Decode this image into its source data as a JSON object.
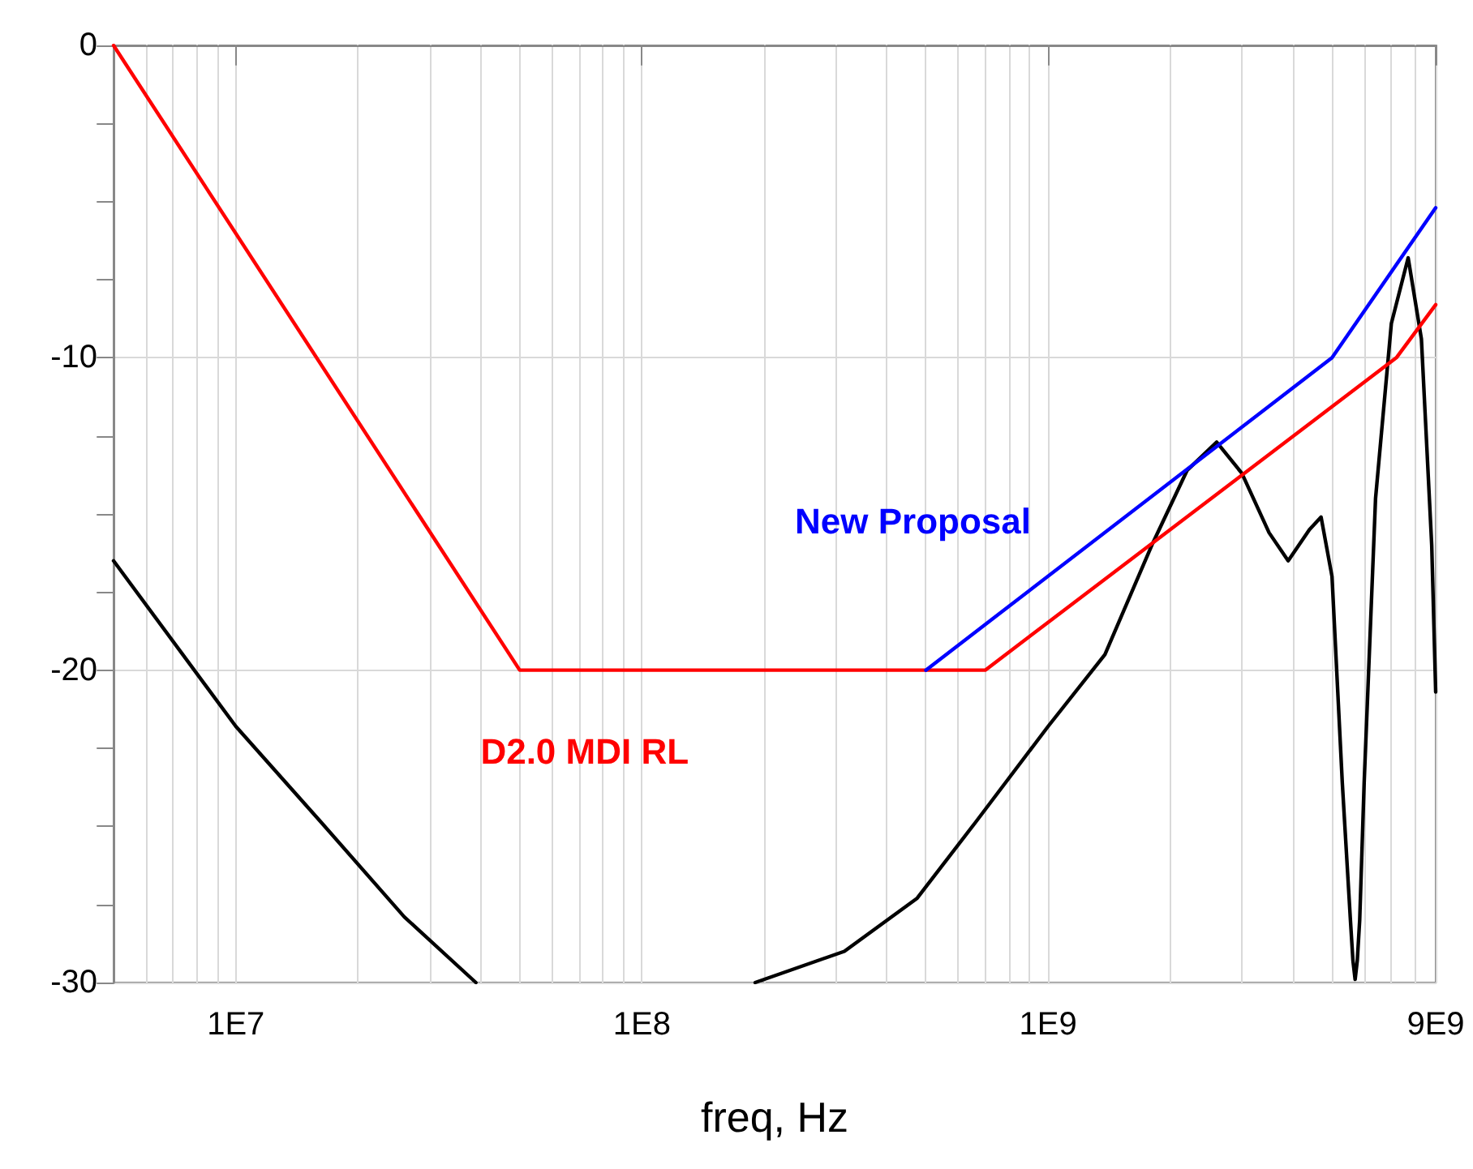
{
  "chart_data": {
    "type": "line",
    "xlabel": "freq, Hz",
    "log": "x",
    "grid": true,
    "xlim": [
      5000000,
      9000000000
    ],
    "xticks": [
      {
        "value": 5000000,
        "label": null
      },
      {
        "value": 6000000,
        "label": null
      },
      {
        "value": 7000000,
        "label": null
      },
      {
        "value": 8000000,
        "label": null
      },
      {
        "value": 9000000,
        "label": null
      },
      {
        "value": 10000000,
        "label": "1E7"
      },
      {
        "value": 20000000,
        "label": null
      },
      {
        "value": 30000000,
        "label": null
      },
      {
        "value": 40000000,
        "label": null
      },
      {
        "value": 50000000,
        "label": null
      },
      {
        "value": 60000000,
        "label": null
      },
      {
        "value": 70000000,
        "label": null
      },
      {
        "value": 80000000,
        "label": null
      },
      {
        "value": 90000000,
        "label": null
      },
      {
        "value": 100000000,
        "label": "1E8"
      },
      {
        "value": 200000000,
        "label": null
      },
      {
        "value": 300000000,
        "label": null
      },
      {
        "value": 400000000,
        "label": null
      },
      {
        "value": 500000000,
        "label": null
      },
      {
        "value": 600000000,
        "label": null
      },
      {
        "value": 700000000,
        "label": null
      },
      {
        "value": 800000000,
        "label": null
      },
      {
        "value": 900000000,
        "label": null
      },
      {
        "value": 1000000000,
        "label": "1E9"
      },
      {
        "value": 2000000000,
        "label": null
      },
      {
        "value": 3000000000,
        "label": null
      },
      {
        "value": 4000000000,
        "label": null
      },
      {
        "value": 5000000000,
        "label": null
      },
      {
        "value": 6000000000,
        "label": null
      },
      {
        "value": 7000000000,
        "label": null
      },
      {
        "value": 8000000000,
        "label": null
      },
      {
        "value": 9000000000,
        "label": "9E9"
      }
    ],
    "ylim": [
      -30,
      0
    ],
    "yticks": [
      -30,
      {
        "value": -27.5,
        "label": null
      },
      {
        "value": -25,
        "label": null
      },
      {
        "value": -22.5,
        "label": null
      },
      -20,
      {
        "value": -17.5,
        "label": null
      },
      {
        "value": -15,
        "label": null
      },
      {
        "value": -12.5,
        "label": null
      },
      -10,
      {
        "value": -7.5,
        "label": null
      },
      {
        "value": -5,
        "label": null
      },
      {
        "value": -2.5,
        "label": null
      },
      0
    ],
    "series": [
      {
        "color": "#000000",
        "x": [
          5000000,
          10000000,
          16300000,
          26000000,
          39000000,
          100000000,
          190000000,
          315000000,
          476000000,
          660000000,
          1000000000,
          1380000000,
          1800000000,
          2200000000,
          2600000000,
          3000000000,
          3500000000,
          3900000000,
          4400000000,
          4700000000,
          5000000000,
          5300000000,
          5550000000,
          5630000000,
          5700000000,
          5770000000,
          5850000000,
          6000000000,
          6400000000,
          7000000000,
          7700000000,
          8300000000,
          8800000000,
          9000000000
        ],
        "values": [
          -16.5,
          -21.8,
          -24.9,
          -27.9,
          -30,
          null,
          -30,
          -29,
          -27.3,
          -24.9,
          -21.8,
          -19.5,
          -16,
          -13.6,
          -12.7,
          -13.7,
          -15.6,
          -16.5,
          -15.5,
          -15.1,
          -17,
          -23.6,
          -28,
          -29.3,
          -29.9,
          -29.3,
          -28,
          -23.6,
          -14.5,
          -8.9,
          -6.8,
          -9.4,
          -16,
          -20.7
        ]
      },
      {
        "name": "D2.0 MDI RL",
        "color": "#ff0000",
        "x": [
          5000000,
          50000000,
          700000000,
          7200000000,
          9000000000
        ],
        "values": [
          0,
          -20,
          -20,
          -10,
          -8.3
        ]
      },
      {
        "name": "New Proposal",
        "color": "#0000ff",
        "x": [
          500000000,
          5000000000,
          9000000000
        ],
        "values": [
          -20,
          -10,
          -5.2
        ]
      }
    ]
  }
}
